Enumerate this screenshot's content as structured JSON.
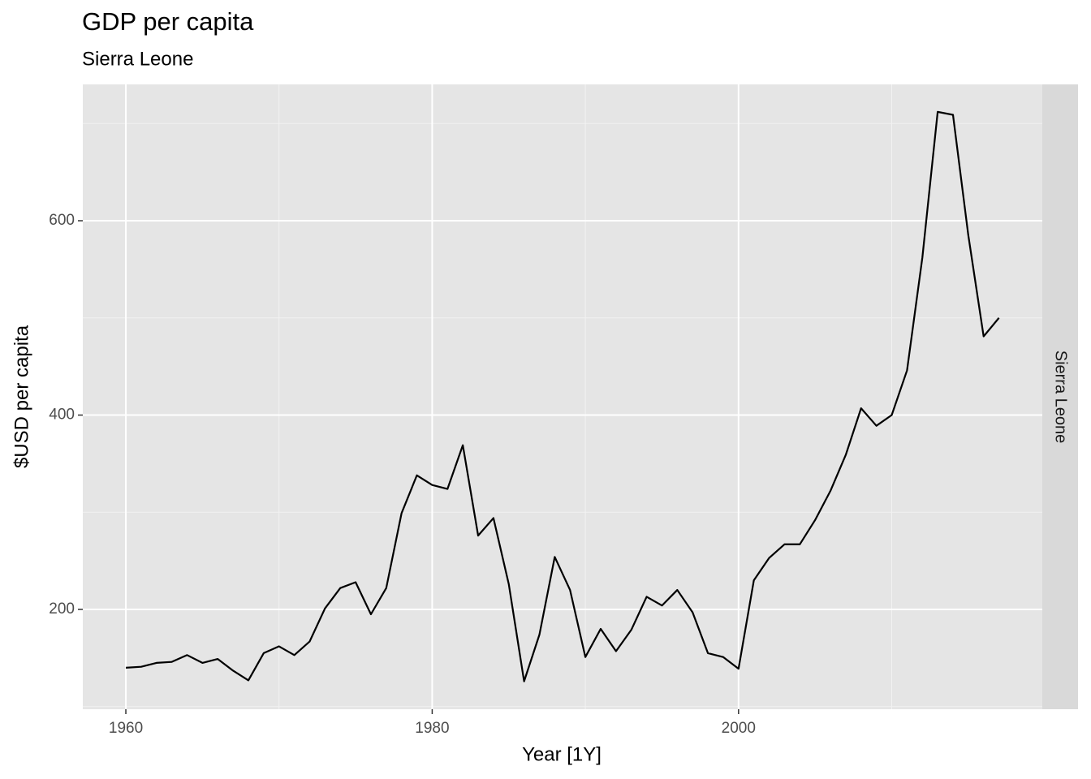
{
  "chart_data": {
    "type": "line",
    "title": "GDP per capita",
    "subtitle": "Sierra Leone",
    "xlabel": "Year [1Y]",
    "ylabel": "$USD per capita",
    "facet": "Sierra Leone",
    "x": [
      1960,
      1961,
      1962,
      1963,
      1964,
      1965,
      1966,
      1967,
      1968,
      1969,
      1970,
      1971,
      1972,
      1973,
      1974,
      1975,
      1976,
      1977,
      1978,
      1979,
      1980,
      1981,
      1982,
      1983,
      1984,
      1985,
      1986,
      1987,
      1988,
      1989,
      1990,
      1991,
      1992,
      1993,
      1994,
      1995,
      1996,
      1997,
      1998,
      1999,
      2000,
      2001,
      2002,
      2003,
      2004,
      2005,
      2006,
      2007,
      2008,
      2009,
      2010,
      2011,
      2012,
      2013,
      2014,
      2015,
      2016,
      2017
    ],
    "series": [
      {
        "name": "Sierra Leone",
        "color": "#000000",
        "values": [
          140,
          141,
          145,
          146,
          153,
          145,
          149,
          137,
          127,
          155,
          162,
          153,
          167,
          201,
          222,
          228,
          195,
          222,
          299,
          338,
          328,
          324,
          369,
          276,
          294,
          226,
          126,
          174,
          254,
          220,
          151,
          180,
          157,
          179,
          213,
          204,
          220,
          197,
          155,
          151,
          139,
          230,
          253,
          267,
          267,
          292,
          322,
          359,
          407,
          389,
          400,
          446,
          562,
          712,
          709,
          585,
          481,
          500
        ]
      }
    ],
    "xlim": [
      1957.19,
      2019.83
    ],
    "xticks": [
      1960,
      1980,
      2000
    ],
    "xminor": [
      1970,
      1990,
      2010
    ],
    "ylim": [
      97.3,
      740.3
    ],
    "yticks": [
      200,
      400,
      600
    ],
    "yminor": [
      100,
      300,
      500,
      700
    ],
    "grid": true
  }
}
